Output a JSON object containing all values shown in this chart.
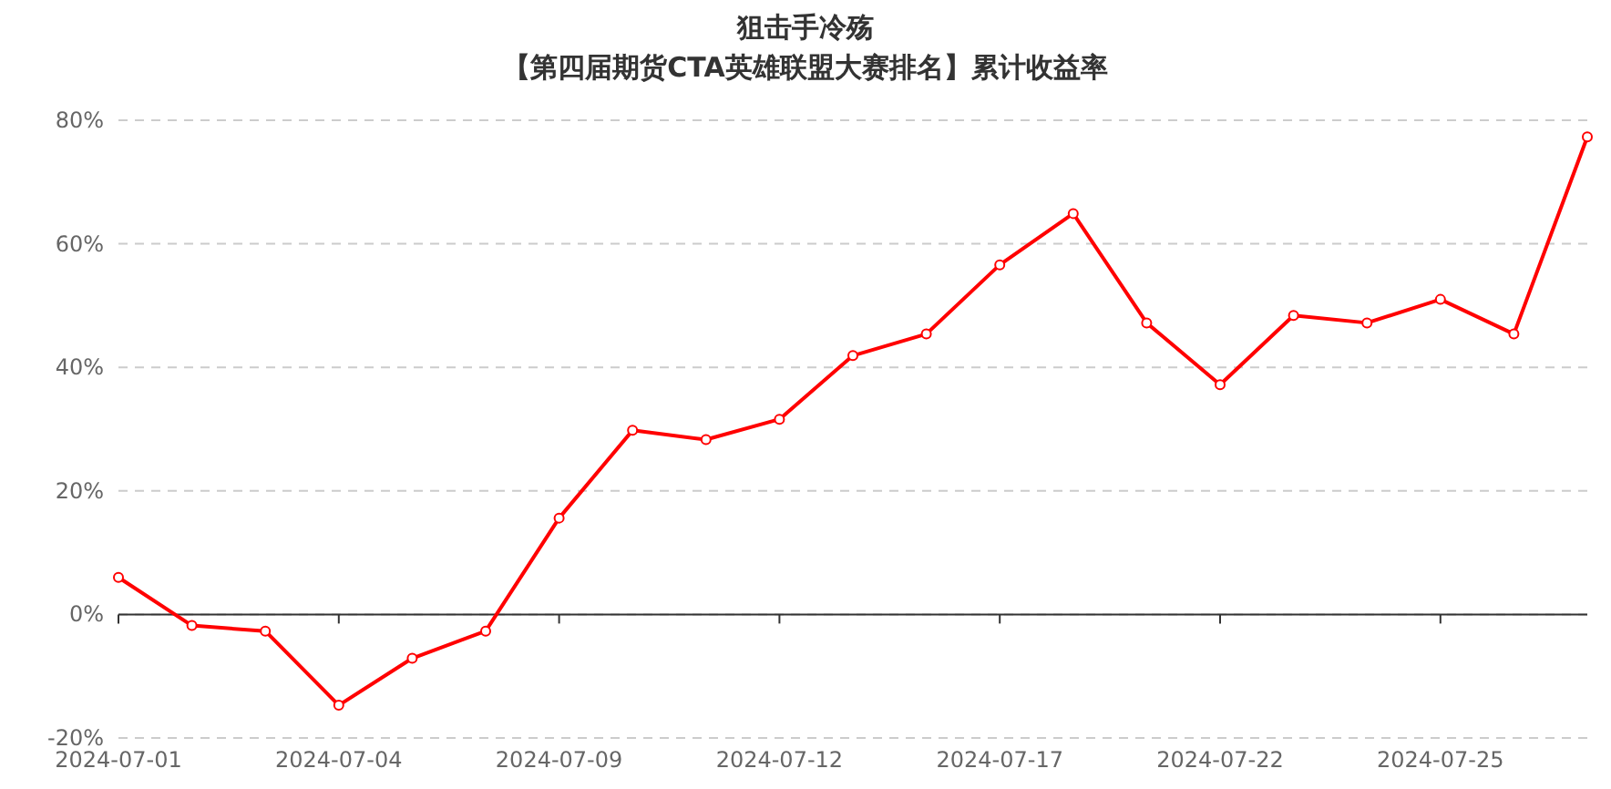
{
  "chart_data": {
    "type": "line",
    "title": "狙击手冷殇",
    "subtitle": "【第四届期货CTA英雄联盟大赛排名】累计收益率",
    "categories": [
      "2024-07-01",
      null,
      null,
      "2024-07-04",
      null,
      null,
      "2024-07-09",
      null,
      null,
      "2024-07-12",
      null,
      null,
      "2024-07-17",
      null,
      null,
      "2024-07-22",
      null,
      null,
      "2024-07-25",
      null,
      null
    ],
    "series": [
      {
        "color": "#ff0000",
        "values": [
          6,
          -1.8,
          -2.7,
          -14.7,
          -7.1,
          -2.7,
          15.6,
          29.8,
          28.3,
          31.6,
          41.9,
          45.4,
          56.6,
          64.9,
          47.2,
          37.2,
          48.4,
          47.2,
          51.0,
          45.4,
          77.3
        ]
      }
    ],
    "ylim": [
      -20,
      80
    ],
    "yticks": [
      {
        "value": -20,
        "label": "-20%"
      },
      {
        "value": 0,
        "label": "0%"
      },
      {
        "value": 20,
        "label": "20%"
      },
      {
        "value": 40,
        "label": "40%"
      },
      {
        "value": 60,
        "label": "60%"
      },
      {
        "value": 80,
        "label": "80%"
      }
    ],
    "grid": "y",
    "marker": "circle",
    "line_style": "solid"
  }
}
